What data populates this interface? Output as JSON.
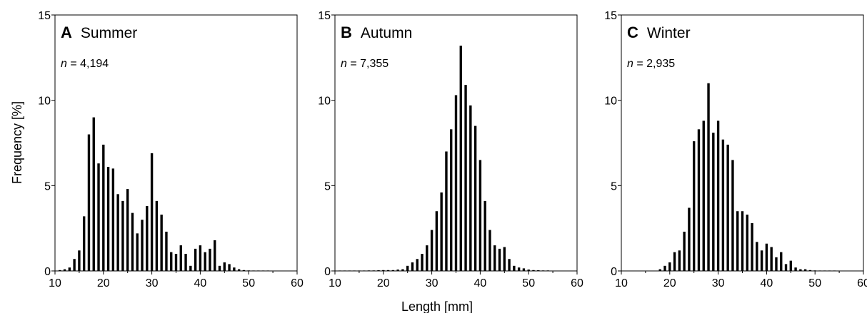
{
  "figure": {
    "ylabel": "Frequency [%]",
    "xlabel": "Length [mm]"
  },
  "chart_data": [
    {
      "type": "bar",
      "letter": "A",
      "season": "Summer",
      "n_prefix": "n",
      "n_text": " = 4,194",
      "xlim": [
        10,
        60
      ],
      "ylim": [
        0,
        15
      ],
      "xticks": [
        10,
        20,
        30,
        40,
        50,
        60
      ],
      "yticks": [
        0,
        5,
        10,
        15
      ],
      "x": [
        11,
        12,
        13,
        14,
        15,
        16,
        17,
        18,
        19,
        20,
        21,
        22,
        23,
        24,
        25,
        26,
        27,
        28,
        29,
        30,
        31,
        32,
        33,
        34,
        35,
        36,
        37,
        38,
        39,
        40,
        41,
        42,
        43,
        44,
        45,
        46,
        47,
        48,
        49,
        50,
        51,
        52,
        53,
        54
      ],
      "values": [
        0.05,
        0.1,
        0.2,
        0.7,
        1.2,
        3.2,
        8.0,
        9.0,
        6.3,
        7.4,
        6.1,
        6.0,
        4.5,
        4.1,
        4.8,
        3.4,
        2.2,
        3.0,
        3.8,
        6.9,
        4.1,
        3.3,
        2.3,
        1.1,
        1.0,
        1.5,
        1.0,
        0.3,
        1.3,
        1.5,
        1.1,
        1.3,
        1.8,
        0.3,
        0.5,
        0.4,
        0.2,
        0.1,
        0.05,
        0.03,
        0.02,
        0.02,
        0.01,
        0.01
      ]
    },
    {
      "type": "bar",
      "letter": "B",
      "season": "Autumn",
      "n_prefix": "n",
      "n_text": " = 7,355",
      "xlim": [
        10,
        60
      ],
      "ylim": [
        0,
        15
      ],
      "xticks": [
        10,
        20,
        30,
        40,
        50,
        60
      ],
      "yticks": [
        0,
        5,
        10,
        15
      ],
      "x": [
        11,
        12,
        13,
        14,
        15,
        16,
        17,
        18,
        19,
        20,
        21,
        22,
        23,
        24,
        25,
        26,
        27,
        28,
        29,
        30,
        31,
        32,
        33,
        34,
        35,
        36,
        37,
        38,
        39,
        40,
        41,
        42,
        43,
        44,
        45,
        46,
        47,
        48,
        49,
        50,
        51,
        52,
        53,
        54
      ],
      "values": [
        0.01,
        0.01,
        0.01,
        0.02,
        0.02,
        0.02,
        0.03,
        0.03,
        0.04,
        0.05,
        0.05,
        0.05,
        0.08,
        0.1,
        0.3,
        0.5,
        0.7,
        1.0,
        1.5,
        2.4,
        3.5,
        4.6,
        7.0,
        8.3,
        10.3,
        13.2,
        10.9,
        9.7,
        8.5,
        6.5,
        4.1,
        2.4,
        1.5,
        1.3,
        1.4,
        0.7,
        0.3,
        0.2,
        0.15,
        0.08,
        0.05,
        0.04,
        0.03,
        0.03
      ]
    },
    {
      "type": "bar",
      "letter": "C",
      "season": "Winter",
      "n_prefix": "n",
      "n_text": " = 2,935",
      "xlim": [
        10,
        60
      ],
      "ylim": [
        0,
        15
      ],
      "xticks": [
        10,
        20,
        30,
        40,
        50,
        60
      ],
      "yticks": [
        0,
        5,
        10,
        15
      ],
      "x": [
        18,
        19,
        20,
        21,
        22,
        23,
        24,
        25,
        26,
        27,
        28,
        29,
        30,
        31,
        32,
        33,
        34,
        35,
        36,
        37,
        38,
        39,
        40,
        41,
        42,
        43,
        44,
        45,
        46,
        47,
        48,
        49,
        50,
        51,
        52,
        53,
        54
      ],
      "values": [
        0.1,
        0.3,
        0.5,
        1.1,
        1.2,
        2.3,
        3.7,
        7.6,
        8.3,
        8.8,
        11.0,
        8.1,
        8.8,
        7.7,
        7.4,
        6.5,
        3.5,
        3.5,
        3.3,
        2.8,
        1.7,
        1.2,
        1.6,
        1.4,
        0.8,
        1.1,
        0.4,
        0.6,
        0.2,
        0.1,
        0.1,
        0.05,
        0.03,
        0.02,
        0.01,
        0.01,
        0.01
      ]
    }
  ]
}
